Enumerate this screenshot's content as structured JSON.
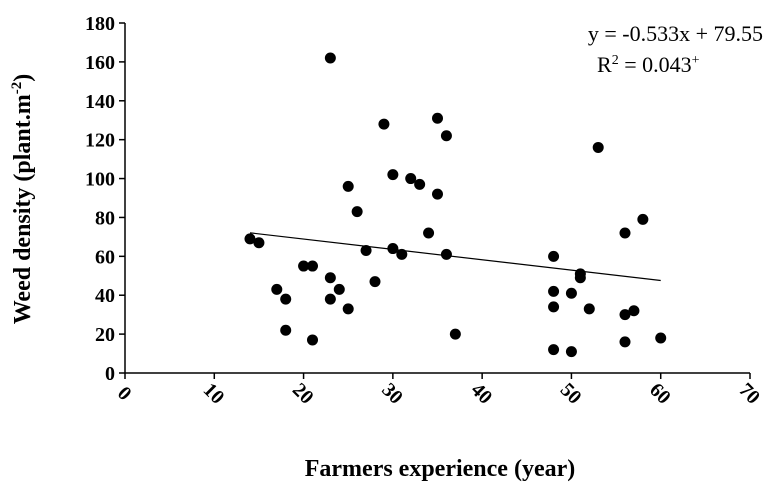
{
  "chart_data": {
    "type": "scatter",
    "xlabel": "Farmers  experience (year)",
    "ylabel_prefix": "Weed  density (plant.m",
    "ylabel_sup": "-2",
    "ylabel_suffix": ")",
    "xlim": [
      0,
      70
    ],
    "ylim": [
      0,
      180
    ],
    "xticks": [
      0,
      10,
      20,
      30,
      40,
      50,
      60,
      70
    ],
    "yticks": [
      0,
      20,
      40,
      60,
      80,
      100,
      120,
      140,
      160,
      180
    ],
    "grid": false,
    "annotations": {
      "equation": "y = -0.533x + 79.55",
      "r2_prefix": "R",
      "r2_sup": "2",
      "r2_mid": " = 0.043",
      "r2_suffix_sup": "+"
    },
    "trendline": {
      "slope": -0.533,
      "intercept": 79.55,
      "x_range": [
        14,
        60
      ]
    },
    "colors": {
      "points": "#000000",
      "line": "#000000",
      "axes": "#000000"
    },
    "points": [
      {
        "x": 14,
        "y": 69
      },
      {
        "x": 15,
        "y": 67
      },
      {
        "x": 17,
        "y": 43
      },
      {
        "x": 18,
        "y": 38
      },
      {
        "x": 18,
        "y": 22
      },
      {
        "x": 20,
        "y": 55
      },
      {
        "x": 21,
        "y": 55
      },
      {
        "x": 21,
        "y": 17
      },
      {
        "x": 23,
        "y": 162
      },
      {
        "x": 23,
        "y": 49
      },
      {
        "x": 23,
        "y": 38
      },
      {
        "x": 24,
        "y": 43
      },
      {
        "x": 25,
        "y": 96
      },
      {
        "x": 25,
        "y": 33
      },
      {
        "x": 26,
        "y": 83
      },
      {
        "x": 27,
        "y": 63
      },
      {
        "x": 28,
        "y": 47
      },
      {
        "x": 29,
        "y": 128
      },
      {
        "x": 30,
        "y": 102
      },
      {
        "x": 30,
        "y": 64
      },
      {
        "x": 31,
        "y": 61
      },
      {
        "x": 32,
        "y": 100
      },
      {
        "x": 33,
        "y": 97
      },
      {
        "x": 34,
        "y": 72
      },
      {
        "x": 35,
        "y": 131
      },
      {
        "x": 35,
        "y": 92
      },
      {
        "x": 36,
        "y": 122
      },
      {
        "x": 36,
        "y": 61
      },
      {
        "x": 37,
        "y": 20
      },
      {
        "x": 48,
        "y": 60
      },
      {
        "x": 48,
        "y": 42
      },
      {
        "x": 48,
        "y": 34
      },
      {
        "x": 48,
        "y": 12
      },
      {
        "x": 50,
        "y": 41
      },
      {
        "x": 50,
        "y": 11
      },
      {
        "x": 51,
        "y": 51
      },
      {
        "x": 51,
        "y": 49
      },
      {
        "x": 52,
        "y": 33
      },
      {
        "x": 53,
        "y": 116
      },
      {
        "x": 56,
        "y": 72
      },
      {
        "x": 56,
        "y": 30
      },
      {
        "x": 56,
        "y": 16
      },
      {
        "x": 57,
        "y": 32
      },
      {
        "x": 58,
        "y": 79
      },
      {
        "x": 60,
        "y": 18
      }
    ]
  }
}
